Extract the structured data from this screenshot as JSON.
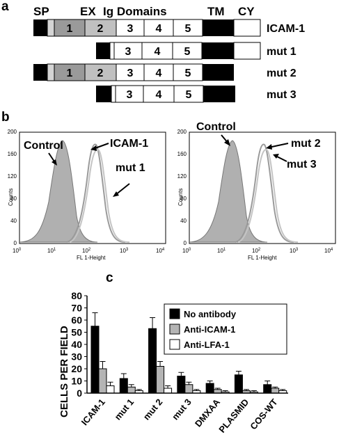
{
  "panel_a": {
    "letter": "a",
    "header": {
      "sp": "SP",
      "ex": "EX",
      "ig_domains": "Ig Domains",
      "tm": "TM",
      "cy": "CY"
    },
    "constructs": [
      {
        "name": "ICAM-1",
        "domains": [
          "1",
          "2",
          "3",
          "4",
          "5"
        ]
      },
      {
        "name": "mut 1",
        "domains": [
          "3",
          "4",
          "5"
        ]
      },
      {
        "name": "mut 2",
        "domains": [
          "1",
          "2",
          "3",
          "4",
          "5"
        ]
      },
      {
        "name": "mut 3",
        "domains": [
          "3",
          "4",
          "5"
        ]
      }
    ]
  },
  "panel_b": {
    "letter": "b",
    "left": {
      "labels": {
        "control": "Control",
        "icam": "ICAM-1",
        "mut1": "mut 1"
      },
      "ylabel": "Counts",
      "xlabel": "FL 1-Height",
      "yticks": [
        "0",
        "40",
        "80",
        "120",
        "160",
        "200"
      ],
      "xticks": [
        "10",
        "10",
        "10",
        "10",
        "10"
      ],
      "xexp": [
        "0",
        "1",
        "2",
        "3",
        "4"
      ]
    },
    "right": {
      "labels": {
        "control": "Control",
        "mut2": "mut 2",
        "mut3": "mut 3"
      },
      "ylabel": "Counts",
      "xlabel": "FL 1-Height",
      "yticks": [
        "0",
        "40",
        "80",
        "120",
        "160",
        "200"
      ],
      "xticks": [
        "10",
        "10",
        "10",
        "10",
        "10"
      ],
      "xexp": [
        "0",
        "1",
        "2",
        "3",
        "4"
      ]
    }
  },
  "panel_c": {
    "letter": "c",
    "chart_data": {
      "type": "bar",
      "ylabel": "CELLS PER FIELD",
      "ylim": [
        0,
        80
      ],
      "yticks": [
        "0",
        "10",
        "20",
        "30",
        "40",
        "50",
        "60",
        "70",
        "80"
      ],
      "categories": [
        "ICAM-1",
        "mut 1",
        "mut 2",
        "mut 3",
        "DMXAA",
        "PLASMID",
        "COS-WT"
      ],
      "legend_position": "top-right",
      "series": [
        {
          "name": "No antibody",
          "color": "#000000",
          "values": [
            55,
            12,
            53,
            14,
            8,
            15,
            7
          ],
          "errors": [
            11,
            4,
            9,
            3,
            2,
            3,
            3
          ]
        },
        {
          "name": "Anti-ICAM-1",
          "color": "#b4b4b4",
          "values": [
            20,
            5,
            22,
            7,
            3,
            2,
            4
          ],
          "errors": [
            6,
            2,
            4,
            2,
            1,
            1,
            1
          ]
        },
        {
          "name": "Anti-LFA-1",
          "color": "#ffffff",
          "values": [
            6,
            2,
            4,
            2,
            1,
            1,
            2
          ],
          "errors": [
            3,
            1,
            2,
            1,
            1,
            1,
            1
          ]
        }
      ]
    }
  }
}
